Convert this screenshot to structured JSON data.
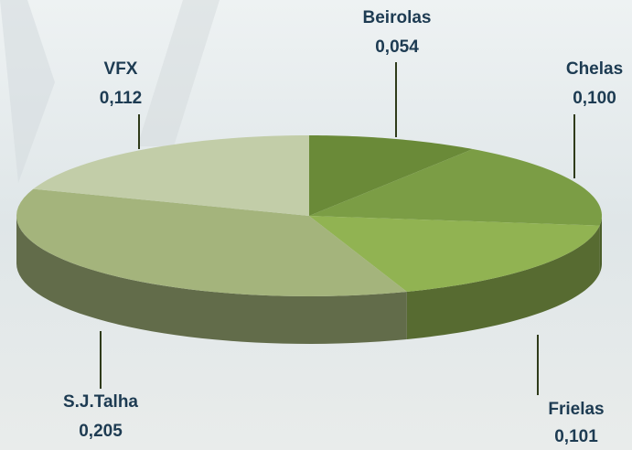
{
  "chart_data": {
    "type": "pie",
    "categories": [
      "Beirolas",
      "Chelas",
      "Frielas",
      "S.J.Talha",
      "VFX"
    ],
    "values": [
      0.054,
      0.1,
      0.101,
      0.205,
      0.112
    ],
    "value_labels": [
      "0,054",
      "0,100",
      "0,101",
      "0,205",
      "0,112"
    ],
    "colors": [
      "#6a8a38",
      "#7b9d45",
      "#91b352",
      "#a4b47c",
      "#c2cda8"
    ]
  }
}
